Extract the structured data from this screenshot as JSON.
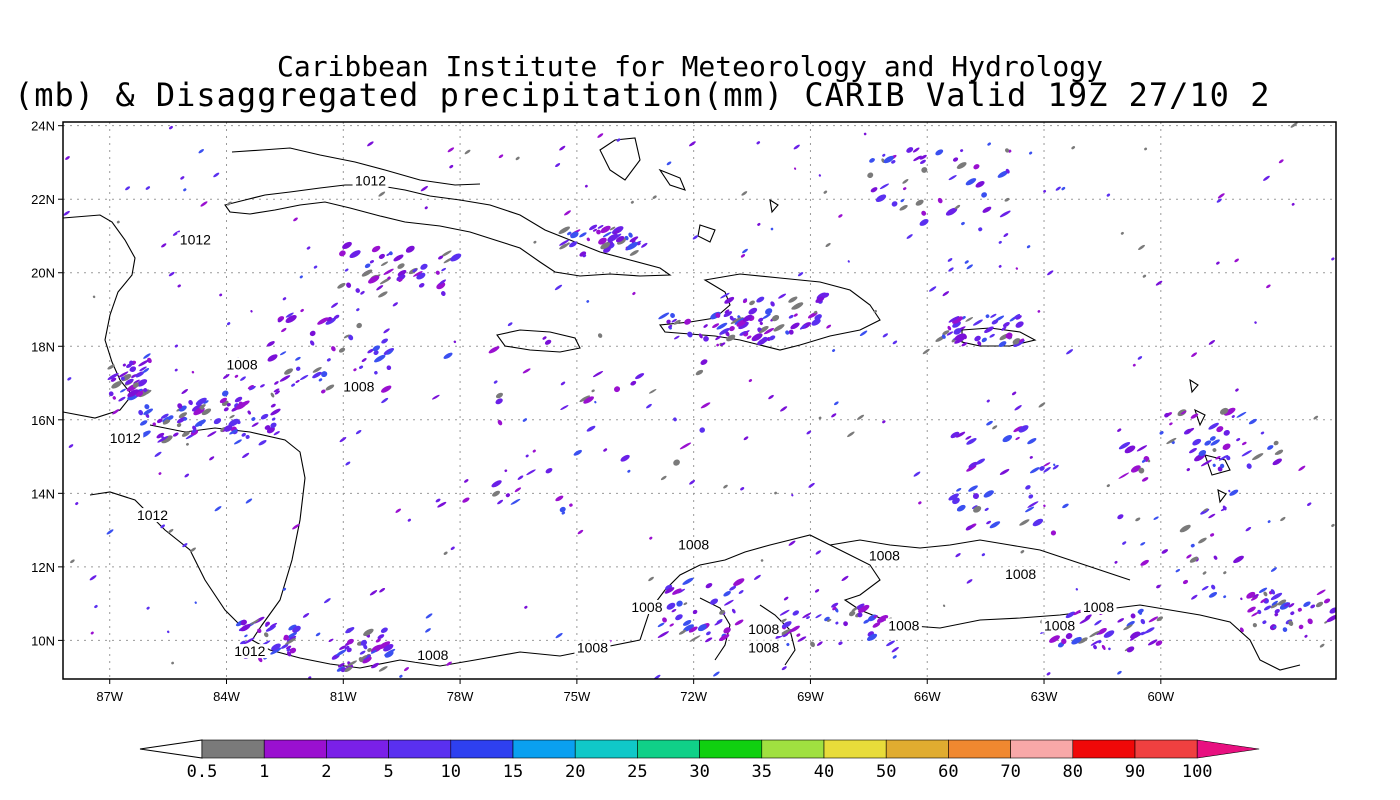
{
  "title": {
    "line1": "Caribbean Institute for Meteorology and Hydrology",
    "line2": "(mb) & Disaggregated precipitation(mm) CARIB Valid 19Z 27/10 2"
  },
  "axes": {
    "lat_labels": [
      "24N",
      "22N",
      "20N",
      "18N",
      "16N",
      "14N",
      "12N",
      "10N"
    ],
    "lon_labels": [
      "87W",
      "84W",
      "81W",
      "78W",
      "75W",
      "72W",
      "69W",
      "66W",
      "63W",
      "60W"
    ]
  },
  "isobars": [
    {
      "label": "1012",
      "lon": -80.3,
      "lat": 22.4
    },
    {
      "label": "1012",
      "lon": -84.8,
      "lat": 20.8
    },
    {
      "label": "1008",
      "lon": -83.6,
      "lat": 17.4
    },
    {
      "label": "1008",
      "lon": -80.6,
      "lat": 16.8
    },
    {
      "label": "1012",
      "lon": -86.6,
      "lat": 15.4
    },
    {
      "label": "1012",
      "lon": -85.9,
      "lat": 13.3
    },
    {
      "label": "1012",
      "lon": -83.4,
      "lat": 9.6
    },
    {
      "label": "1008",
      "lon": -78.7,
      "lat": 9.5
    },
    {
      "label": "1008",
      "lon": -74.6,
      "lat": 9.7
    },
    {
      "label": "1008",
      "lon": -73.2,
      "lat": 10.8
    },
    {
      "label": "1008",
      "lon": -72.0,
      "lat": 12.5
    },
    {
      "label": "1008",
      "lon": -70.2,
      "lat": 10.2
    },
    {
      "label": "1008",
      "lon": -70.2,
      "lat": 9.7
    },
    {
      "label": "1008",
      "lon": -67.1,
      "lat": 12.2
    },
    {
      "label": "1008",
      "lon": -66.6,
      "lat": 10.3
    },
    {
      "label": "1008",
      "lon": -63.6,
      "lat": 11.7
    },
    {
      "label": "1008",
      "lon": -62.6,
      "lat": 10.3
    },
    {
      "label": "1008",
      "lon": -61.6,
      "lat": 10.8
    }
  ],
  "colorbar": {
    "labels": [
      "0.5",
      "1",
      "2",
      "5",
      "10",
      "15",
      "20",
      "25",
      "30",
      "35",
      "40",
      "50",
      "60",
      "70",
      "80",
      "90",
      "100"
    ],
    "colors": [
      "#7a7a7a",
      "#9a10d0",
      "#7a20e8",
      "#5a30f0",
      "#2e40f0",
      "#0aa0f0",
      "#10c8c8",
      "#10d088",
      "#10d010",
      "#a0e040",
      "#e8dc3a",
      "#e0ac30",
      "#f08830",
      "#f8a8a8",
      "#f00808",
      "#f04040"
    ]
  }
}
